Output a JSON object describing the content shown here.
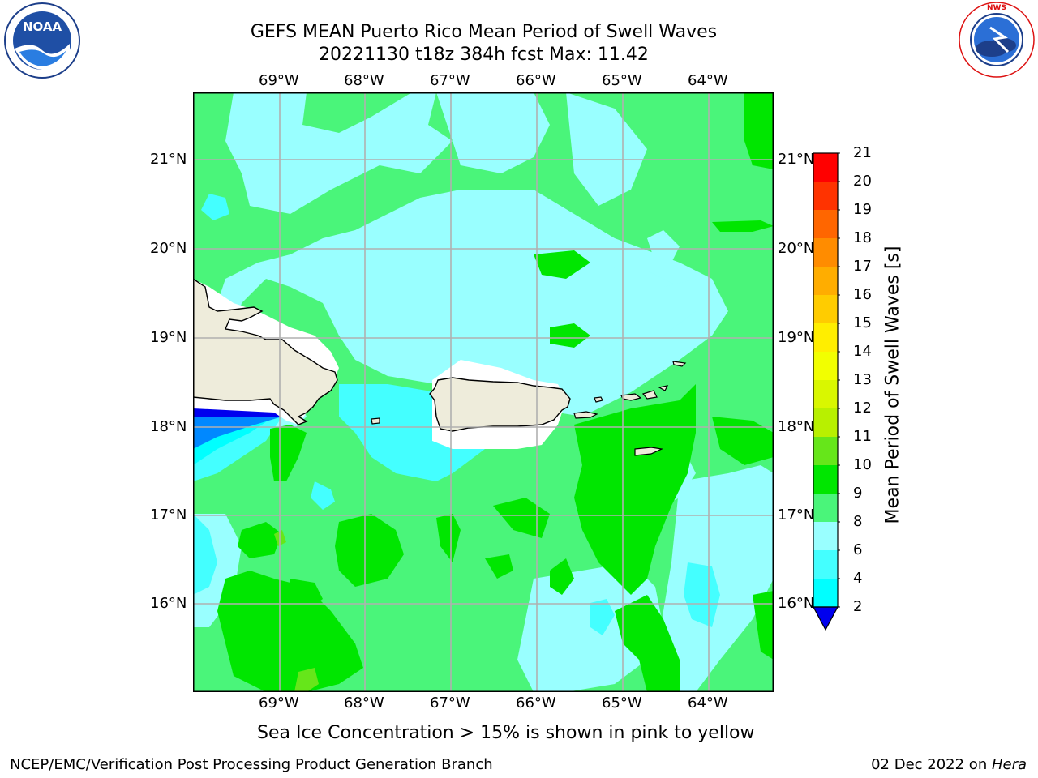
{
  "header": {
    "title_line1": "GEFS MEAN Puerto Rico Mean Period of Swell Waves",
    "title_line2": "20221130 t18z 384h fcst   Max: 11.42"
  },
  "logos": {
    "left": "NOAA",
    "right": "NATIONAL WEATHER SERVICE"
  },
  "map": {
    "lon_labels": [
      "69°W",
      "68°W",
      "67°W",
      "66°W",
      "65°W",
      "64°W"
    ],
    "lat_labels": [
      "21°N",
      "20°N",
      "19°N",
      "18°N",
      "17°N",
      "16°N"
    ],
    "ocean_color": "#4af57a"
  },
  "colorbar": {
    "label": "Mean Period of Swell Waves [s]",
    "ticks": [
      "21",
      "20",
      "19",
      "18",
      "17",
      "16",
      "15",
      "14",
      "13",
      "12",
      "11",
      "10",
      "9",
      "8",
      "6",
      "4",
      "2"
    ],
    "colors": [
      "#ff0000",
      "#ff3300",
      "#ff6600",
      "#ff8c00",
      "#ffad00",
      "#ffcc00",
      "#ffee00",
      "#f2ff00",
      "#d9f700",
      "#b8f000",
      "#66e61a",
      "#00e600",
      "#4af57a",
      "#99ffff",
      "#44ffff",
      "#00ffff",
      "#00ccff",
      "#0055ff",
      "#0000ee"
    ]
  },
  "note": "Sea Ice Concentration > 15% is shown in pink to yellow",
  "footer": {
    "left": "NCEP/EMC/Verification Post Processing Product Generation Branch",
    "date": "02 Dec 2022 on ",
    "host": "Hera"
  }
}
